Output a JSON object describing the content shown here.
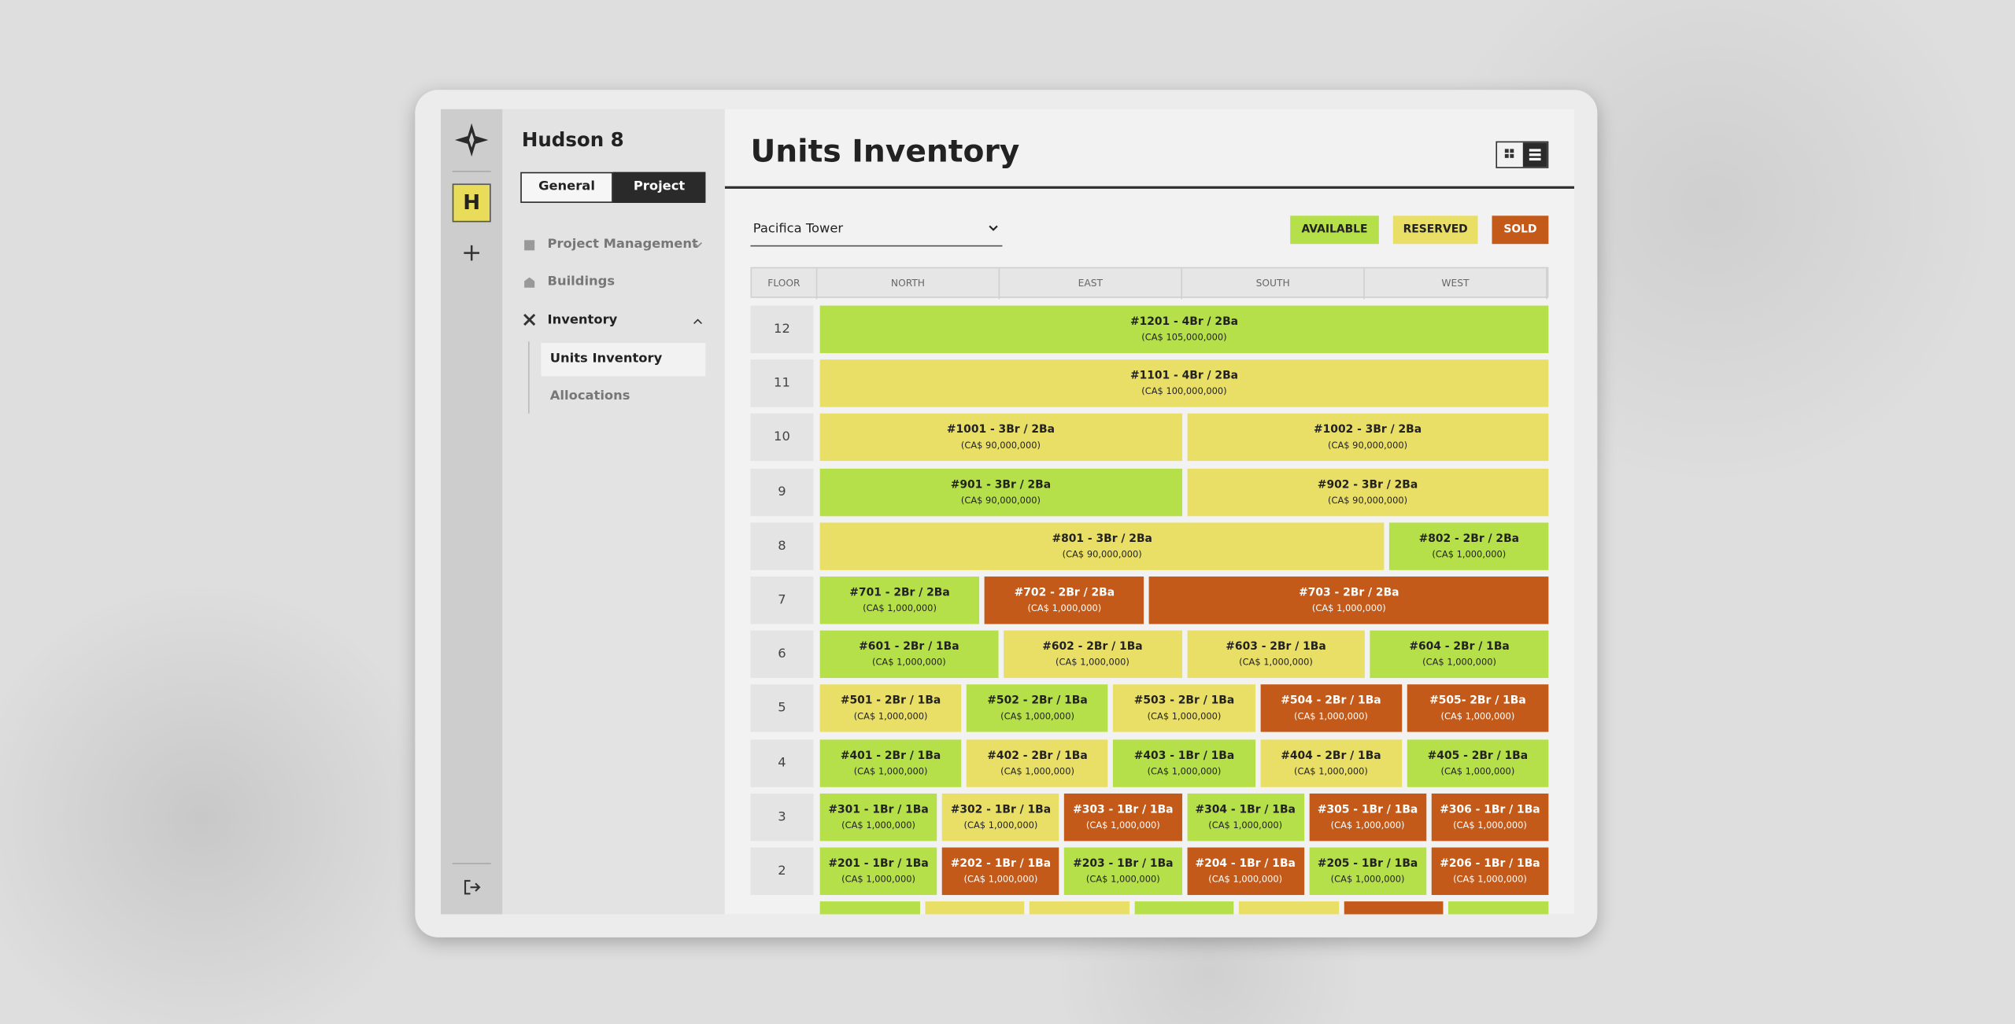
{
  "sidebar": {
    "logo_letter": "H",
    "project_name": "Hudson 8",
    "tabs": [
      "General",
      "Project"
    ],
    "nav": [
      "Project Management",
      "Buildings",
      "Inventory"
    ],
    "subnav": [
      "Units Inventory",
      "Allocations"
    ]
  },
  "header": {
    "title": "Units Inventory",
    "building": "Pacifica Tower"
  },
  "legend": [
    {
      "name": "AVAILABLE",
      "color": "#b5e04a"
    },
    {
      "name": "RESERVED",
      "color": "#eadf66"
    },
    {
      "name": "SOLD",
      "color": "#c35a1a"
    }
  ],
  "table": {
    "columns": [
      "FLOOR",
      "NORTH",
      "EAST",
      "SOUTH",
      "WEST"
    ]
  },
  "floors": [
    {
      "floor": 12,
      "units": [
        {
          "label": "#1201 - 4Br / 2Ba",
          "price": "(CA$ 105,000,000)",
          "color": "#b5e04a"
        }
      ]
    },
    {
      "floor": 11,
      "units": [
        {
          "label": "#1101 - 4Br / 2Ba",
          "price": "(CA$ 100,000,000)",
          "color": "#eadf66"
        }
      ]
    },
    {
      "floor": 10,
      "units": [
        {
          "label": "#1001 - 3Br / 2Ba",
          "price": "(CA$ 90,000,000)",
          "color": "#eadf66"
        },
        {
          "label": "#1002 - 3Br / 2Ba",
          "price": "(CA$ 90,000,000)",
          "color": "#eadf66"
        }
      ]
    },
    {
      "floor": 9,
      "units": [
        {
          "label": "#901 - 3Br / 2Ba",
          "price": "(CA$ 90,000,000)",
          "color": "#b5e04a"
        },
        {
          "label": "#902 - 3Br / 2Ba",
          "price": "(CA$ 90,000,000)",
          "color": "#eadf66"
        }
      ]
    },
    {
      "floor": 8,
      "units": [
        {
          "label": "#801 - 3Br / 2Ba",
          "price": "(CA$ 90,000,000)",
          "color": "#eadf66"
        },
        {
          "label": "#802 - 2Br / 2Ba",
          "price": "(CA$ 1,000,000)",
          "color": "#b5e04a"
        }
      ]
    },
    {
      "floor": 7,
      "units": [
        {
          "label": "#701 - 2Br / 2Ba",
          "price": "(CA$ 1,000,000)",
          "color": "#b5e04a"
        },
        {
          "label": "#702 - 2Br / 2Ba",
          "price": "(CA$ 1,000,000)",
          "color": "#c35a1a"
        },
        {
          "label": "#703 - 2Br / 2Ba",
          "price": "(CA$ 1,000,000)",
          "color": "#c35a1a"
        }
      ]
    },
    {
      "floor": 6,
      "units": [
        {
          "label": "#601 - 2Br / 1Ba",
          "price": "(CA$ 1,000,000)",
          "color": "#b5e04a"
        },
        {
          "label": "#602 - 2Br / 1Ba",
          "price": "(CA$ 1,000,000)",
          "color": "#eadf66"
        },
        {
          "label": "#603 - 2Br / 1Ba",
          "price": "(CA$ 1,000,000)",
          "color": "#eadf66"
        },
        {
          "label": "#604 - 2Br / 1Ba",
          "price": "(CA$ 1,000,000)",
          "color": "#b5e04a"
        }
      ]
    },
    {
      "floor": 5,
      "units": [
        {
          "label": "#501 - 2Br / 1Ba",
          "price": "(CA$ 1,000,000)",
          "color": "#eadf66"
        },
        {
          "label": "#502 - 2Br / 1Ba",
          "price": "(CA$ 1,000,000)",
          "color": "#b5e04a"
        },
        {
          "label": "#503 - 2Br / 1Ba",
          "price": "(CA$ 1,000,000)",
          "color": "#eadf66"
        },
        {
          "label": "#504 - 2Br / 1Ba",
          "price": "(CA$ 1,000,000)",
          "color": "#c35a1a"
        },
        {
          "label": "#505- 2Br / 1Ba",
          "price": "(CA$ 1,000,000)",
          "color": "#c35a1a"
        }
      ]
    },
    {
      "floor": 4,
      "units": [
        {
          "label": "#401 - 2Br / 1Ba",
          "price": "(CA$ 1,000,000)",
          "color": "#b5e04a"
        },
        {
          "label": "#402 - 2Br / 1Ba",
          "price": "(CA$ 1,000,000)",
          "color": "#eadf66"
        },
        {
          "label": "#403 - 1Br / 1Ba",
          "price": "(CA$ 1,000,000)",
          "color": "#b5e04a"
        },
        {
          "label": "#404 - 2Br / 1Ba",
          "price": "(CA$ 1,000,000)",
          "color": "#eadf66"
        },
        {
          "label": "#405 - 2Br / 1Ba",
          "price": "(CA$ 1,000,000)",
          "color": "#b5e04a"
        }
      ]
    },
    {
      "floor": 3,
      "units": [
        {
          "label": "#301 - 1Br / 1Ba",
          "price": "(CA$ 1,000,000)",
          "color": "#b5e04a"
        },
        {
          "label": "#302 - 1Br / 1Ba",
          "price": "(CA$ 1,000,000)",
          "color": "#eadf66"
        },
        {
          "label": "#303 - 1Br / 1Ba",
          "price": "(CA$ 1,000,000)",
          "color": "#c35a1a"
        },
        {
          "label": "#304 - 1Br / 1Ba",
          "price": "(CA$ 1,000,000)",
          "color": "#b5e04a"
        },
        {
          "label": "#305 - 1Br / 1Ba",
          "price": "(CA$ 1,000,000)",
          "color": "#c35a1a"
        },
        {
          "label": "#306 - 1Br / 1Ba",
          "price": "(CA$ 1,000,000)",
          "color": "#c35a1a"
        }
      ]
    },
    {
      "floor": 2,
      "units": [
        {
          "label": "#201 - 1Br / 1Ba",
          "price": "(CA$ 1,000,000)",
          "color": "#b5e04a"
        },
        {
          "label": "#202 - 1Br / 1Ba",
          "price": "(CA$ 1,000,000)",
          "color": "#c35a1a"
        },
        {
          "label": "#203 - 1Br / 1Ba",
          "price": "(CA$ 1,000,000)",
          "color": "#b5e04a"
        },
        {
          "label": "#204 - 1Br / 1Ba",
          "price": "(CA$ 1,000,000)",
          "color": "#c35a1a"
        },
        {
          "label": "#205 - 1Br / 1Ba",
          "price": "(CA$ 1,000,000)",
          "color": "#b5e04a"
        },
        {
          "label": "#206 - 1Br / 1Ba",
          "price": "(CA$ 1,000,000)",
          "color": "#c35a1a"
        }
      ]
    },
    {
      "units": [
        {
          "color": "#b5e04a"
        },
        {
          "color": "#eadf66"
        },
        {
          "color": "#eadf66"
        },
        {
          "color": "#b5e04a"
        },
        {
          "color": "#eadf66"
        },
        {
          "color": "#c35a1a"
        },
        {
          "color": "#b5e04a"
        }
      ]
    }
  ]
}
